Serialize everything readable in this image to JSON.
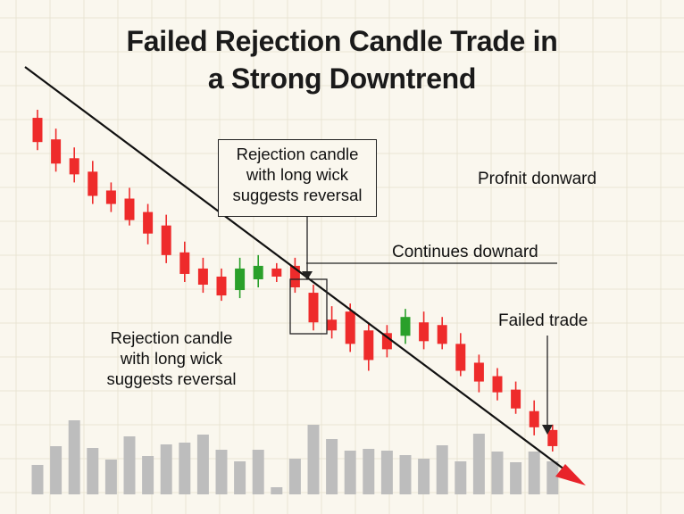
{
  "chart_data": {
    "type": "candlestick",
    "title": "Failed Rejection Candle Trade in\na Strong Downtrend",
    "title_lines": [
      "Failed Rejection Candle Trade in",
      "a Strong Downtrend"
    ],
    "grid": true,
    "colors": {
      "bear": "#ee2b2b",
      "bull": "#2aa02a",
      "volume": "#bdbdbd",
      "trendline": "#111111",
      "arrow_head": "#e8232a",
      "grid": "#e9e4d4"
    },
    "candles": [
      {
        "open": 96,
        "close": 87,
        "high": 99,
        "low": 84
      },
      {
        "open": 88,
        "close": 79,
        "high": 92,
        "low": 76
      },
      {
        "open": 81,
        "close": 75,
        "high": 85,
        "low": 72
      },
      {
        "open": 76,
        "close": 67,
        "high": 80,
        "low": 64
      },
      {
        "open": 69,
        "close": 64,
        "high": 72,
        "low": 61
      },
      {
        "open": 66,
        "close": 58,
        "high": 70,
        "low": 56
      },
      {
        "open": 61,
        "close": 53,
        "high": 64,
        "low": 49
      },
      {
        "open": 56,
        "close": 45,
        "high": 60,
        "low": 42
      },
      {
        "open": 46,
        "close": 38,
        "high": 50,
        "low": 35
      },
      {
        "open": 40,
        "close": 34,
        "high": 44,
        "low": 31
      },
      {
        "open": 37,
        "close": 30,
        "high": 40,
        "low": 28
      },
      {
        "open": 32,
        "close": 40,
        "high": 44,
        "low": 29
      },
      {
        "open": 36,
        "close": 41,
        "high": 45,
        "low": 33
      },
      {
        "open": 40,
        "close": 37,
        "high": 42,
        "low": 35
      },
      {
        "open": 41,
        "close": 33,
        "high": 44,
        "low": 31
      },
      {
        "open": 31,
        "close": 20,
        "high": 34,
        "low": 17
      },
      {
        "open": 21,
        "close": 17,
        "high": 26,
        "low": 14
      },
      {
        "open": 24,
        "close": 12,
        "high": 27,
        "low": 9
      },
      {
        "open": 17,
        "close": 6,
        "high": 20,
        "low": 2
      },
      {
        "open": 16,
        "close": 10,
        "high": 19,
        "low": 7
      },
      {
        "open": 15,
        "close": 22,
        "high": 25,
        "low": 12
      },
      {
        "open": 20,
        "close": 13,
        "high": 24,
        "low": 10
      },
      {
        "open": 19,
        "close": 12,
        "high": 22,
        "low": 10
      },
      {
        "open": 12,
        "close": 2,
        "high": 16,
        "low": 0
      },
      {
        "open": 5,
        "close": -2,
        "high": 8,
        "low": -6
      },
      {
        "open": 0,
        "close": -6,
        "high": 3,
        "low": -9
      },
      {
        "open": -5,
        "close": -12,
        "high": -2,
        "low": -14
      },
      {
        "open": -13,
        "close": -19,
        "high": -9,
        "low": -22
      },
      {
        "open": -20,
        "close": -26,
        "high": -18,
        "low": -28
      }
    ],
    "volume": [
      33,
      54,
      83,
      52,
      39,
      65,
      43,
      56,
      58,
      67,
      50,
      37,
      50,
      8,
      40,
      78,
      62,
      49,
      51,
      49,
      44,
      40,
      55,
      37,
      68,
      48,
      36,
      48,
      37
    ]
  },
  "annotations": {
    "box_label": "Rejection candle\nwith long wick\nsuggests reversal",
    "left_label": "Rejection candle\nwith long wick\nsuggests reversal",
    "profit_label": "Profnit donward",
    "continues_label": "Continues downard",
    "failed_label": "Failed trade"
  }
}
